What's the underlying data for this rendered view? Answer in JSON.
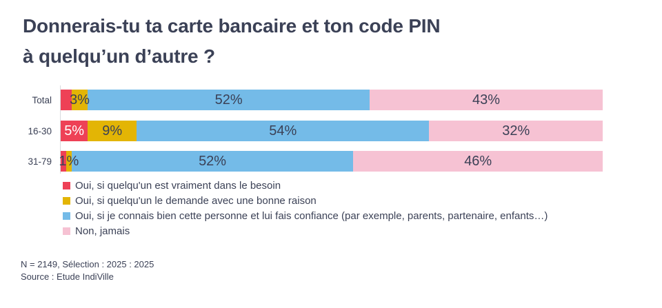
{
  "title": {
    "line1": "Donnerais-tu ta carte bancaire et ton code PIN",
    "line2": "à quelqu’un d’autre ?"
  },
  "chart_data": {
    "type": "bar",
    "orientation": "horizontal",
    "stacked": true,
    "unit": "%",
    "xlim": [
      0,
      100
    ],
    "grid": false,
    "legend_position": "bottom-left",
    "categories": [
      "Total",
      "16-30",
      "31-79"
    ],
    "series": [
      {
        "name": "Oui, si quelqu'un est vraiment dans le besoin",
        "color": "#ee4156",
        "label_text_color": "#ffffff",
        "values": [
          2,
          5,
          1
        ],
        "labels_shown": [
          false,
          true,
          false
        ]
      },
      {
        "name": "Oui, si quelqu'un le demande avec une bonne raison",
        "color": "#e3b505",
        "label_text_color": "#3b4156",
        "values": [
          3,
          9,
          1
        ],
        "labels_shown": [
          true,
          true,
          true
        ]
      },
      {
        "name": "Oui, si je connais bien cette personne et lui fais confiance (par exemple, parents, partenaire, enfants…)",
        "color": "#74bbe8",
        "label_text_color": "#3b4156",
        "values": [
          52,
          54,
          52
        ],
        "labels_shown": [
          true,
          true,
          true
        ]
      },
      {
        "name": "Non, jamais",
        "color": "#f6c2d3",
        "label_text_color": "#3b4156",
        "values": [
          43,
          32,
          46
        ],
        "labels_shown": [
          true,
          true,
          true
        ]
      }
    ]
  },
  "footer": {
    "line1": "N = 2149, Sélection : 2025 : 2025",
    "line2": "Source : Etude IndiVille"
  }
}
